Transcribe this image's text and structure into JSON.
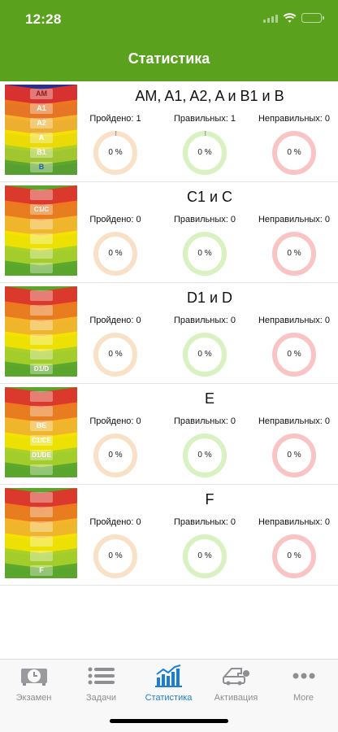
{
  "status_bar": {
    "time": "12:28"
  },
  "nav": {
    "title": "Статистика"
  },
  "categories": [
    {
      "title": "AM, A1, A2, A и B1 и B",
      "passed_label": "Пройдено: 1",
      "correct_label": "Правильных: 1",
      "wrong_label": "Неправильных: 0",
      "passed_pct": "0 %",
      "correct_pct": "0 %",
      "wrong_pct": "0 %",
      "passed_fraction": 0.004,
      "correct_fraction": 0.004,
      "wrong_fraction": 0,
      "badges": [
        "AM",
        "A1",
        "A2",
        "A",
        "B1",
        "B"
      ]
    },
    {
      "title": "C1 и C",
      "passed_label": "Пройдено: 0",
      "correct_label": "Правильных: 0",
      "wrong_label": "Неправильных: 0",
      "passed_pct": "0 %",
      "correct_pct": "0 %",
      "wrong_pct": "0 %",
      "passed_fraction": 0,
      "correct_fraction": 0,
      "wrong_fraction": 0,
      "badges": [
        "C1/C"
      ]
    },
    {
      "title": "D1 и D",
      "passed_label": "Пройдено: 0",
      "correct_label": "Правильных: 0",
      "wrong_label": "Неправильных: 0",
      "passed_pct": "0 %",
      "correct_pct": "0 %",
      "wrong_pct": "0 %",
      "passed_fraction": 0,
      "correct_fraction": 0,
      "wrong_fraction": 0,
      "badges": [
        "D1/D"
      ]
    },
    {
      "title": "E",
      "passed_label": "Пройдено: 0",
      "correct_label": "Правильных: 0",
      "wrong_label": "Неправильных: 0",
      "passed_pct": "0 %",
      "correct_pct": "0 %",
      "wrong_pct": "0 %",
      "passed_fraction": 0,
      "correct_fraction": 0,
      "wrong_fraction": 0,
      "badges": [
        "BE",
        "C1/CE",
        "D1/DE"
      ]
    },
    {
      "title": "F",
      "passed_label": "Пройдено: 0",
      "correct_label": "Правильных: 0",
      "wrong_label": "Неправильных: 0",
      "passed_pct": "0 %",
      "correct_pct": "0 %",
      "wrong_pct": "0 %",
      "passed_fraction": 0,
      "correct_fraction": 0,
      "wrong_fraction": 0,
      "badges": [
        "F"
      ]
    }
  ],
  "ring_colors": {
    "passed_track": "#f9e1c7",
    "correct_track": "#d8f2c2",
    "wrong_track": "#f9c4c4",
    "progress": "#9e9e9e"
  },
  "tabs": [
    {
      "label": "Экзамен",
      "icon": "exam-clock-icon",
      "active": false
    },
    {
      "label": "Задачи",
      "icon": "list-icon",
      "active": false
    },
    {
      "label": "Статистика",
      "icon": "bar-chart-icon",
      "active": true
    },
    {
      "label": "Активация",
      "icon": "car-key-icon",
      "active": false
    },
    {
      "label": "More",
      "icon": "more-dots-icon",
      "active": false
    }
  ],
  "colors": {
    "header_green": "#5aa21e",
    "tab_active": "#1a7fd4",
    "tab_inactive": "#8e8e93"
  }
}
